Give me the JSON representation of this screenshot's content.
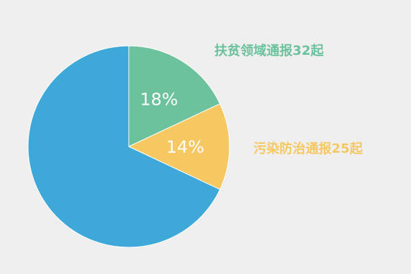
{
  "chart_data": {
    "type": "pie",
    "start": "top",
    "direction": "clockwise",
    "slices": [
      {
        "value": 18,
        "data_label": "18%",
        "annotation": "扶贫领域通报32起",
        "color": "#6cc29c"
      },
      {
        "value": 14,
        "data_label": "14%",
        "annotation": "污染防治通报25起",
        "color": "#f6c862"
      },
      {
        "value": 68,
        "data_label": "",
        "annotation": "",
        "color": "#3ea9d9"
      }
    ],
    "background": "#efefef"
  }
}
